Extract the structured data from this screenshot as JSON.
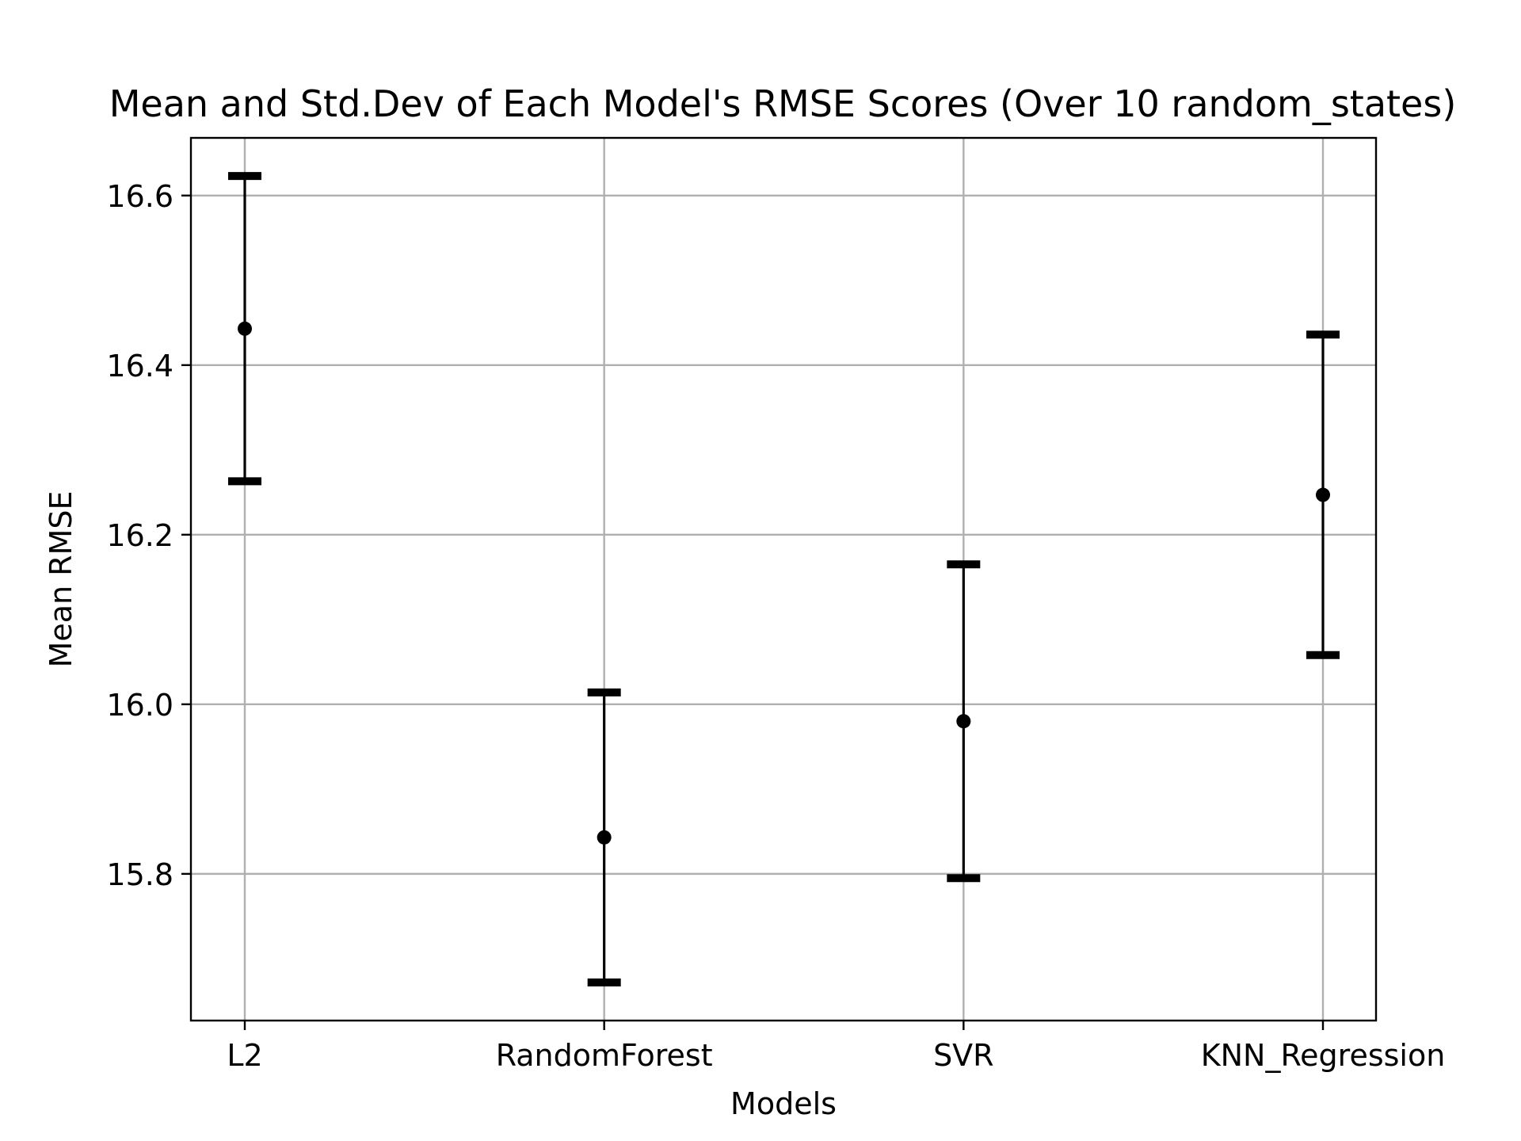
{
  "chart_data": {
    "type": "scatter",
    "title": "Mean and Std.Dev of Each Model's RMSE Scores (Over 10 random_states)",
    "xlabel": "Models",
    "ylabel": "Mean RMSE",
    "categories": [
      "L2",
      "RandomForest",
      "SVR",
      "KNN_Regression"
    ],
    "series": [
      {
        "mean": [
          16.443,
          15.843,
          15.98,
          16.247
        ],
        "std": [
          0.18,
          0.171,
          0.185,
          0.189
        ]
      }
    ],
    "ylim": [
      15.627,
      16.668
    ],
    "yticks": [
      15.8,
      16.0,
      16.2,
      16.4,
      16.6
    ],
    "ytick_labels": [
      "15.8",
      "16.0",
      "16.2",
      "16.4",
      "16.6"
    ],
    "grid": true,
    "color": "#000000"
  }
}
